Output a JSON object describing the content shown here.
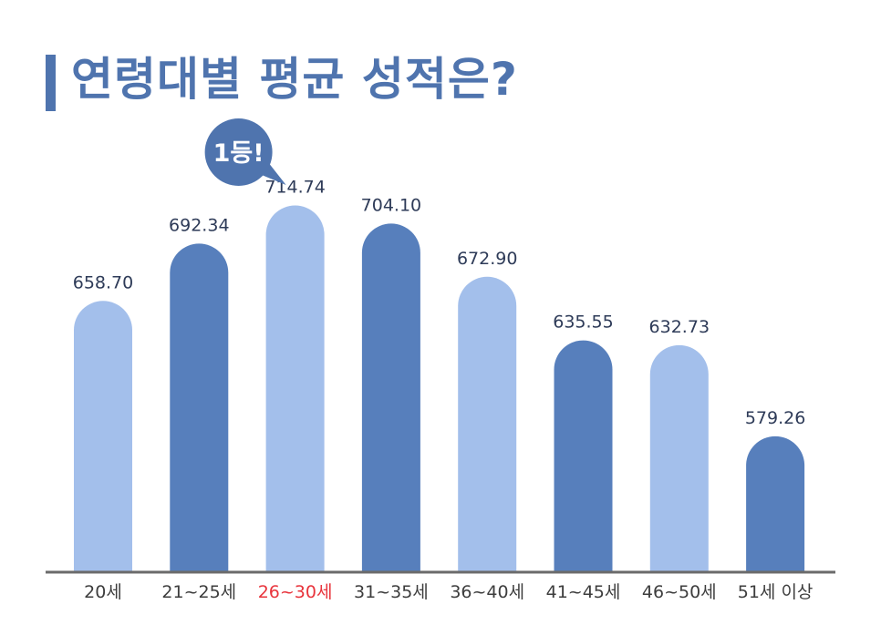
{
  "page": {
    "title": "연령대별 평균 성적은?",
    "badge": "1등!"
  },
  "colors": {
    "accent": "#4f74ae",
    "bar_light": "#a3bfeb",
    "bar_dark": "#577fbc",
    "axis": "#6b6b6b",
    "highlight_label": "#e8343c"
  },
  "chart_data": {
    "type": "bar",
    "title": "연령대별 평균 성적은?",
    "categories": [
      "20세",
      "21~25세",
      "26~30세",
      "31~35세",
      "36~40세",
      "41~45세",
      "46~50세",
      "51세 이상"
    ],
    "values": [
      658.7,
      692.34,
      714.74,
      704.1,
      672.9,
      635.55,
      632.73,
      579.26
    ],
    "value_labels": [
      "658.70",
      "692.34",
      "714.74",
      "704.10",
      "672.90",
      "635.55",
      "632.73",
      "579.26"
    ],
    "bar_colors": [
      "light",
      "dark",
      "light",
      "dark",
      "light",
      "dark",
      "light",
      "dark"
    ],
    "highlight_index": 2,
    "ylim": [
      500,
      730
    ],
    "grid": false,
    "legend": "none"
  }
}
